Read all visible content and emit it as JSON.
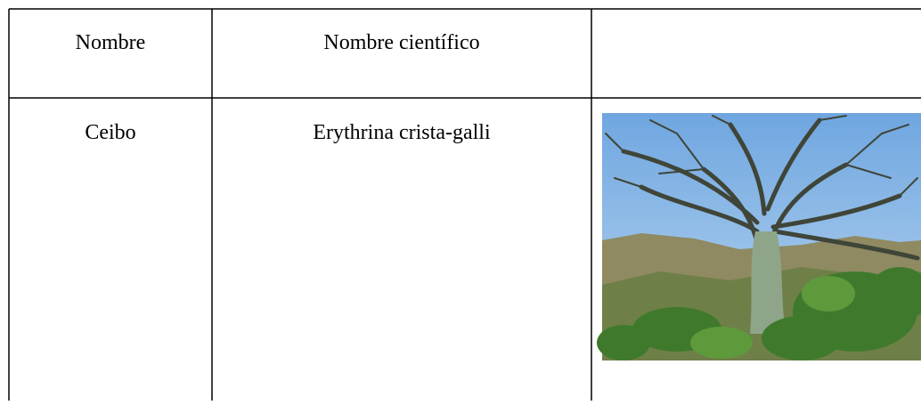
{
  "table": {
    "header": [
      "Nombre",
      "Nombre científico"
    ],
    "rows": [
      [
        "Ceibo",
        "Erythrina crista-galli"
      ]
    ]
  }
}
